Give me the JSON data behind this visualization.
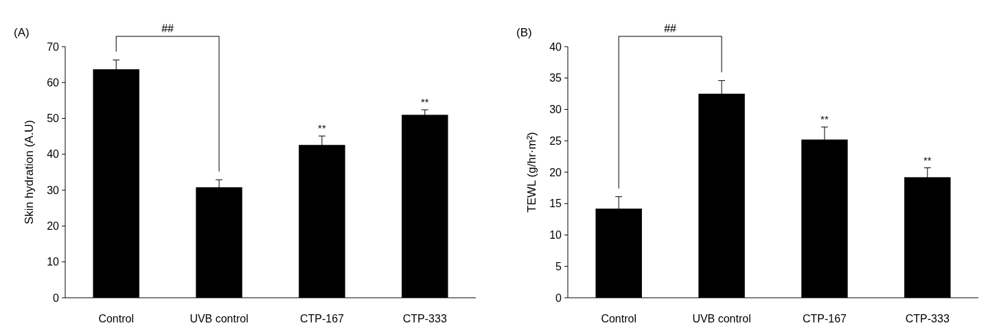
{
  "chart_data": [
    {
      "type": "bar",
      "ylabel": "Skin hydration (A.U)",
      "categories": [
        "Control",
        "UVB control",
        "CTP-167",
        "CTP-333"
      ],
      "values": [
        63.7,
        30.8,
        42.6,
        51.0
      ],
      "errors": [
        2.6,
        2.1,
        2.5,
        1.4
      ],
      "color": "#000000",
      "ylim": [
        0,
        70
      ],
      "yticks": [
        0,
        10,
        20,
        30,
        40,
        50,
        60,
        70
      ],
      "grid": false,
      "annotations": [
        "(A)",
        "##",
        {
          "text": "**",
          "x": "CTP-167",
          "y": 45.1
        },
        {
          "text": "**",
          "x": "CTP-333",
          "y": 52.4
        }
      ]
    },
    {
      "type": "bar",
      "ylabel": "TEWL (g/hr·m²)",
      "categories": [
        "Control",
        "UVB control",
        "CTP-167",
        "CTP-333"
      ],
      "values": [
        14.2,
        32.5,
        25.2,
        19.2
      ],
      "errors": [
        1.9,
        2.1,
        2.0,
        1.5
      ],
      "color": "#000000",
      "ylim": [
        0,
        40
      ],
      "yticks": [
        0,
        5,
        10,
        15,
        20,
        25,
        30,
        35,
        40
      ],
      "grid": false,
      "annotations": [
        "(B)",
        "##",
        {
          "text": "**",
          "x": "CTP-167",
          "y": 27.2
        },
        {
          "text": "**",
          "x": "CTP-333",
          "y": 20.7
        }
      ]
    }
  ]
}
